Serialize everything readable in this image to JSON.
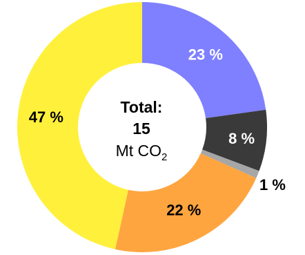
{
  "chart_data": {
    "type": "pie",
    "variant": "donut",
    "categories": [
      "",
      "",
      "",
      "",
      ""
    ],
    "values": [
      23,
      8,
      1,
      22,
      47
    ],
    "labels": [
      "23 %",
      "8 %",
      "1 %",
      "22 %",
      "47 %"
    ],
    "colors": [
      "#7f80ff",
      "#3a3a3a",
      "#a6a6a6",
      "#ffa53f",
      "#fff03c"
    ],
    "label_colors": [
      "#ffffff",
      "#ffffff",
      "#000000",
      "#000000",
      "#000000"
    ],
    "start_angle_deg": 0,
    "direction": "clockwise",
    "center_text": {
      "line1": "Total:",
      "line2": "15",
      "unit_main": "Mt CO",
      "unit_sub": "2"
    }
  }
}
